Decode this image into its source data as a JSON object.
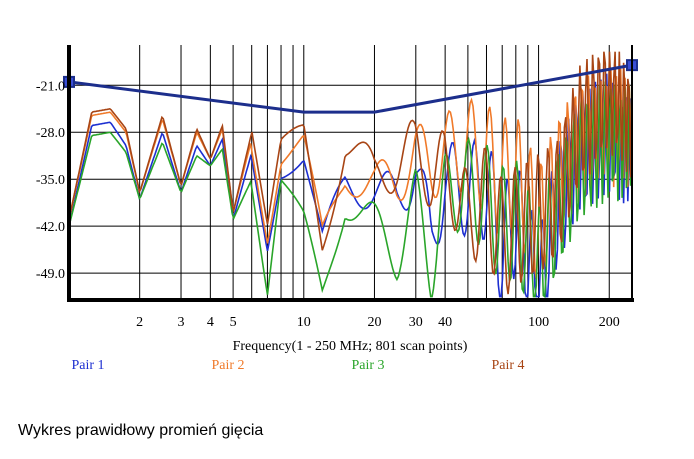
{
  "chart_data": {
    "type": "line",
    "title": "",
    "xlabel": "Frequency(1 - 250 MHz; 801 scan points)",
    "ylabel": "",
    "xscale": "log",
    "xlim": [
      1,
      250
    ],
    "ylim": [
      -53,
      -15
    ],
    "x_ticks": [
      2,
      3,
      4,
      5,
      10,
      20,
      30,
      40,
      100,
      200
    ],
    "y_ticks": [
      -21.0,
      -28.0,
      -35.0,
      -42.0,
      -49.0
    ],
    "grid": true,
    "legend_position": "bottom",
    "limit_line": {
      "x": [
        1,
        10,
        20,
        250
      ],
      "values": [
        -20.5,
        -25.0,
        -25.0,
        -18.0
      ],
      "color": "#1c2e8c"
    },
    "series": [
      {
        "name": "Pair 1",
        "color": "#1d2fd1",
        "x": [
          1,
          1.25,
          1.5,
          1.75,
          2,
          2.5,
          3,
          3.5,
          4,
          4.5,
          5,
          6,
          7,
          8,
          10,
          12,
          15,
          20,
          25,
          30,
          35,
          40,
          50,
          60,
          70,
          80,
          100,
          120,
          150,
          200,
          250
        ],
        "values": [
          -42,
          -27,
          -26.5,
          -30,
          -38,
          -28,
          -37,
          -30,
          -33,
          -29,
          -41,
          -31,
          -44,
          -33,
          -32,
          -45,
          -35,
          -37,
          -38,
          -33,
          -44,
          -35,
          -37,
          -36,
          -46,
          -40,
          -52,
          -39,
          -31,
          -28,
          -31
        ]
      },
      {
        "name": "Pair 2",
        "color": "#f07a2a",
        "x": [
          1,
          1.25,
          1.5,
          1.75,
          2,
          2.5,
          3,
          3.5,
          4,
          4.5,
          5,
          6,
          7,
          8,
          10,
          12,
          15,
          20,
          25,
          30,
          35,
          40,
          50,
          60,
          70,
          80,
          100,
          120,
          150,
          200,
          250
        ],
        "values": [
          -41,
          -25.5,
          -25,
          -28,
          -37,
          -26,
          -36,
          -28,
          -32,
          -27.5,
          -40,
          -29,
          -43,
          -32,
          -30,
          -44,
          -34,
          -36,
          -35,
          -31,
          -33,
          -31,
          -30,
          -32,
          -35,
          -34,
          -42,
          -35,
          -29,
          -27,
          -28
        ]
      },
      {
        "name": "Pair 3",
        "color": "#2aa52a",
        "x": [
          1,
          1.25,
          1.5,
          1.75,
          2,
          2.5,
          3,
          3.5,
          4,
          4.5,
          5,
          6,
          7,
          8,
          10,
          12,
          15,
          20,
          25,
          30,
          35,
          40,
          50,
          60,
          70,
          80,
          100,
          120,
          150,
          200,
          250
        ],
        "values": [
          -42,
          -28.5,
          -28,
          -31,
          -38,
          -29.5,
          -37,
          -31.5,
          -33,
          -30.5,
          -41,
          -35,
          -52,
          -36,
          -42,
          -52,
          -38,
          -42,
          -46,
          -38,
          -48,
          -37,
          -36,
          -38,
          -42,
          -41,
          -48,
          -40,
          -32,
          -29,
          -30
        ]
      },
      {
        "name": "Pair 4",
        "color": "#a84515",
        "x": [
          1,
          1.25,
          1.5,
          1.75,
          2,
          2.5,
          3,
          3.5,
          4,
          4.5,
          5,
          6,
          7,
          8,
          10,
          12,
          15,
          20,
          25,
          30,
          35,
          40,
          50,
          60,
          70,
          80,
          100,
          120,
          150,
          200,
          250
        ],
        "values": [
          -41,
          -25,
          -24.5,
          -27.5,
          -37,
          -25.5,
          -36,
          -27.5,
          -32,
          -27,
          -40,
          -28,
          -43,
          -31,
          -28,
          -44,
          -30,
          -34,
          -33,
          -30,
          -35,
          -33,
          -41,
          -38,
          -44,
          -42,
          -40,
          -38,
          -27,
          -22,
          -26
        ]
      }
    ]
  },
  "caption": "Wykres prawidłowy promień gięcia"
}
